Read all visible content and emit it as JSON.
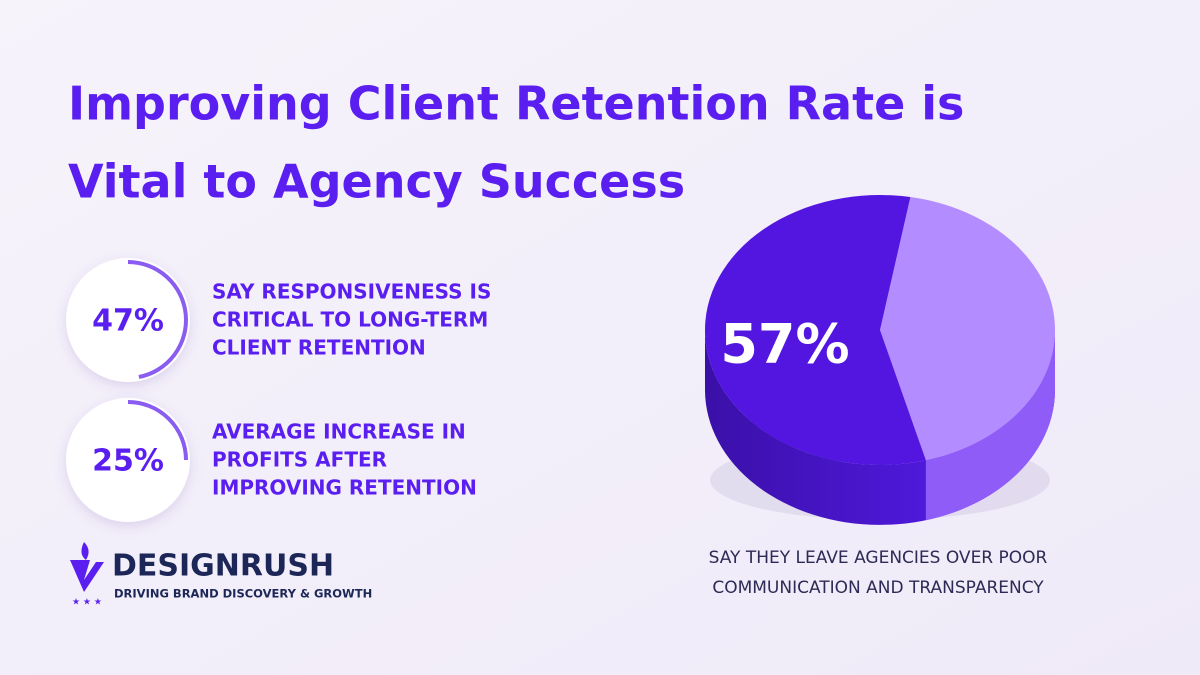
{
  "title_lines": [
    "Improving Client Retention Rate is",
    "Vital to Agency Success"
  ],
  "stats": [
    {
      "value": 47,
      "value_label": "47%",
      "lines": [
        "SAY RESPONSIVENESS IS",
        "CRITICAL TO LONG-TERM",
        "CLIENT RETENTION"
      ]
    },
    {
      "value": 25,
      "value_label": "25%",
      "lines": [
        "AVERAGE INCREASE IN",
        "PROFITS AFTER",
        "IMPROVING RETENTION"
      ]
    }
  ],
  "chart_data": {
    "type": "pie",
    "values": [
      57
    ],
    "value_labels": [
      "57%"
    ],
    "colors": [
      "#5216e0",
      "#b38cff"
    ],
    "caption_lines": [
      "SAY THEY LEAVE AGENCIES OVER POOR",
      "COMMUNICATION AND TRANSPARENCY"
    ]
  },
  "brand": {
    "name": "DESIGNRUSH",
    "tagline": "DRIVING BRAND DISCOVERY & GROWTH"
  }
}
